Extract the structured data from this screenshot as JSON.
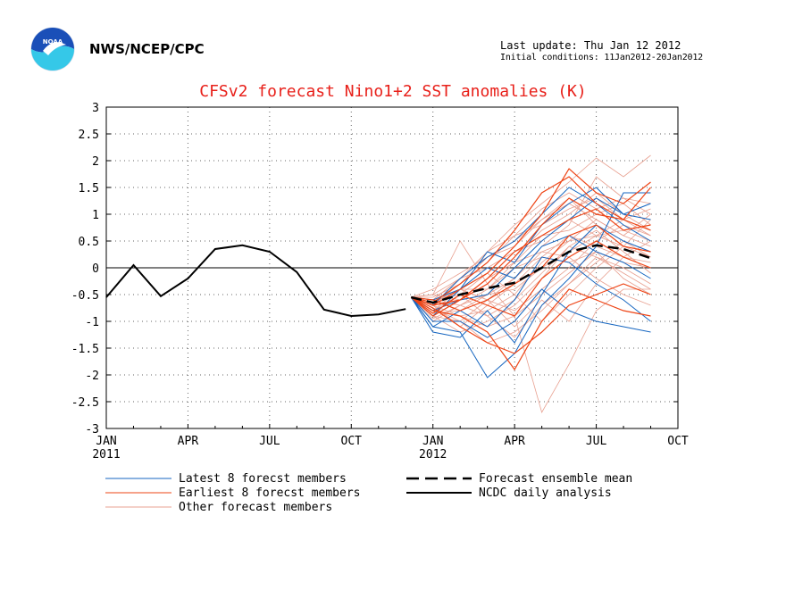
{
  "header": {
    "org": "NWS/NCEP/CPC",
    "last_update": "Last update: Thu Jan 12 2012",
    "initial_conditions": "Initial conditions: 11Jan2012-20Jan2012",
    "logo_text": "NOAA"
  },
  "colors": {
    "title": "#e8201a",
    "latest": "#1565c0",
    "earliest": "#ee4415",
    "other": "#e8a090",
    "mean": "#000000",
    "analysis": "#000000",
    "logo_blue": "#1a4fb8",
    "logo_cyan": "#35c8e8"
  },
  "chart_data": {
    "type": "line",
    "title": "CFSv2 forecast Nino1+2 SST anomalies (K)",
    "ylim": [
      -3,
      3
    ],
    "y_ticks": [
      "3",
      "2.5",
      "2",
      "1.5",
      "1",
      "0.5",
      "0",
      "-0.5",
      "-1",
      "-1.5",
      "-2",
      "-2.5",
      "-3"
    ],
    "x_ticks": [
      "JAN",
      "APR",
      "JUL",
      "OCT",
      "JAN",
      "APR",
      "JUL",
      "OCT"
    ],
    "x_year_labels": [
      "2011",
      "2012"
    ],
    "x_range_months": [
      0,
      21
    ],
    "grid": true,
    "zero_line": true,
    "legend": {
      "latest": "Latest 8 forecst members",
      "earliest": "Earliest 8 forecst members",
      "other": "Other forecast members",
      "mean": "Forecast ensemble mean",
      "analysis": "NCDC daily analysis"
    },
    "ncdc_analysis": {
      "x_month": [
        0,
        1,
        2,
        3,
        4,
        5,
        6,
        7,
        8,
        9,
        10,
        11
      ],
      "y": [
        -0.55,
        0.05,
        -0.53,
        -0.2,
        0.35,
        0.42,
        0.3,
        -0.08,
        -0.78,
        -0.9,
        -0.87,
        -0.77
      ]
    },
    "ensemble_mean": {
      "x_month": [
        11.2,
        12,
        13,
        14,
        15,
        16,
        17,
        18,
        19,
        20
      ],
      "y": [
        -0.55,
        -0.65,
        -0.5,
        -0.38,
        -0.28,
        0.0,
        0.3,
        0.42,
        0.35,
        0.18
      ]
    },
    "members": {
      "x_month": [
        11.2,
        12,
        13,
        14,
        15,
        16,
        17,
        18,
        19,
        20
      ],
      "n_latest": 8,
      "n_earliest": 8,
      "n_other": 24,
      "latest": [
        [
          -0.55,
          -1.1,
          -1.2,
          -2.05,
          -1.6,
          -0.7,
          -0.2,
          0.4,
          1.4,
          1.4
        ],
        [
          -0.55,
          -0.9,
          -0.4,
          0.3,
          0.1,
          0.8,
          1.2,
          1.5,
          1.0,
          1.2
        ],
        [
          -0.55,
          -1.2,
          -1.3,
          -0.8,
          -1.4,
          -0.5,
          0.3,
          0.8,
          0.5,
          0.3
        ],
        [
          -0.55,
          -0.7,
          -0.2,
          0.2,
          0.5,
          1.0,
          1.5,
          1.2,
          0.8,
          0.5
        ],
        [
          -0.55,
          -1.0,
          -1.0,
          -1.3,
          -1.0,
          -0.4,
          -0.8,
          -1.0,
          -1.1,
          -1.2
        ],
        [
          -0.55,
          -0.8,
          -0.6,
          -0.5,
          0.0,
          0.5,
          0.9,
          1.3,
          1.0,
          0.9
        ],
        [
          -0.55,
          -1.1,
          -0.8,
          -1.1,
          -0.6,
          0.2,
          0.1,
          -0.3,
          -0.6,
          -1.0
        ],
        [
          -0.55,
          -0.6,
          -0.4,
          0.0,
          -0.2,
          0.4,
          0.6,
          0.3,
          0.1,
          -0.2
        ]
      ],
      "earliest": [
        [
          -0.55,
          -0.7,
          -0.4,
          -0.1,
          0.4,
          1.0,
          1.85,
          1.4,
          1.2,
          1.6
        ],
        [
          -0.55,
          -0.8,
          -0.9,
          -1.2,
          -1.9,
          -1.0,
          -0.4,
          -0.6,
          -0.8,
          -0.9
        ],
        [
          -0.55,
          -0.9,
          -0.6,
          -0.3,
          0.2,
          0.8,
          1.3,
          1.0,
          0.9,
          1.5
        ],
        [
          -0.55,
          -0.6,
          -0.8,
          -0.6,
          -0.3,
          0.0,
          0.6,
          0.8,
          0.4,
          0.3
        ],
        [
          -0.55,
          -0.75,
          -1.1,
          -1.4,
          -1.6,
          -1.2,
          -0.7,
          -0.5,
          -0.3,
          -0.5
        ],
        [
          -0.55,
          -0.65,
          -0.3,
          0.1,
          0.7,
          1.4,
          1.7,
          1.2,
          0.9,
          0.7
        ],
        [
          -0.55,
          -0.85,
          -0.5,
          -0.7,
          -0.9,
          -0.2,
          0.2,
          0.5,
          0.2,
          0.0
        ],
        [
          -0.55,
          -0.7,
          -0.6,
          -0.2,
          0.3,
          0.6,
          0.9,
          1.1,
          0.7,
          0.8
        ]
      ],
      "other": [
        [
          -0.55,
          -0.5,
          0.5,
          -0.3,
          -0.9,
          -2.7,
          -1.8,
          -0.8,
          -0.4,
          -0.4
        ],
        [
          -0.55,
          -0.6,
          -0.2,
          0.3,
          0.8,
          1.2,
          1.6,
          2.05,
          1.7,
          2.1
        ],
        [
          -0.55,
          -0.9,
          -1.0,
          -0.6,
          -0.2,
          0.4,
          0.8,
          1.7,
          1.3,
          1.0
        ],
        [
          -0.55,
          -0.7,
          -0.4,
          -0.6,
          -1.1,
          -0.6,
          -1.0,
          -0.3,
          0.2,
          0.5
        ],
        [
          -0.55,
          -0.4,
          -0.1,
          0.2,
          0.5,
          0.9,
          1.2,
          0.9,
          0.6,
          0.4
        ],
        [
          -0.55,
          -0.8,
          -0.9,
          -0.8,
          -0.5,
          0.1,
          0.5,
          0.6,
          0.9,
          1.1
        ],
        [
          -0.55,
          -1.0,
          -0.7,
          -0.4,
          0.0,
          0.2,
          0.1,
          0.3,
          -0.2,
          -0.5
        ],
        [
          -0.55,
          -0.6,
          -0.5,
          -0.9,
          -1.3,
          -0.7,
          -0.3,
          0.1,
          0.5,
          0.2
        ],
        [
          -0.55,
          -0.7,
          -0.3,
          0.1,
          0.6,
          1.1,
          1.4,
          1.1,
          1.3,
          1.2
        ],
        [
          -0.55,
          -0.9,
          -1.2,
          -1.0,
          -0.7,
          -0.2,
          0.4,
          0.7,
          0.3,
          -0.1
        ],
        [
          -0.55,
          -0.5,
          -0.6,
          -0.3,
          0.2,
          0.7,
          1.0,
          1.4,
          1.0,
          0.7
        ],
        [
          -0.55,
          -0.8,
          -0.5,
          -0.1,
          -0.5,
          -1.0,
          -0.5,
          0.0,
          0.4,
          0.9
        ],
        [
          -0.55,
          -0.75,
          -1.0,
          -1.4,
          -1.2,
          -0.8,
          -0.3,
          0.2,
          0.0,
          -0.3
        ],
        [
          -0.55,
          -0.6,
          -0.2,
          0.0,
          0.3,
          0.5,
          0.9,
          0.6,
          0.7,
          0.5
        ],
        [
          -0.55,
          -0.85,
          -0.8,
          -0.5,
          -0.2,
          0.3,
          0.2,
          -0.2,
          -0.5,
          -0.7
        ],
        [
          -0.55,
          -0.65,
          -0.4,
          -0.6,
          -0.8,
          -0.4,
          0.0,
          0.5,
          0.8,
          0.6
        ],
        [
          -0.55,
          -0.7,
          -0.9,
          -1.1,
          -0.9,
          -0.5,
          -0.1,
          0.3,
          0.1,
          0.0
        ],
        [
          -0.55,
          -0.55,
          -0.3,
          0.2,
          0.4,
          0.9,
          1.3,
          0.8,
          0.5,
          0.3
        ],
        [
          -0.55,
          -0.9,
          -0.6,
          -0.2,
          0.1,
          0.6,
          0.7,
          1.0,
          1.2,
          0.8
        ],
        [
          -0.55,
          -0.6,
          -0.7,
          -0.9,
          -0.6,
          -0.1,
          0.4,
          0.2,
          -0.1,
          -0.4
        ],
        [
          -0.55,
          -0.8,
          -0.4,
          -0.4,
          0.1,
          0.3,
          0.5,
          0.9,
          0.6,
          1.0
        ],
        [
          -0.55,
          -0.7,
          -1.1,
          -0.7,
          -0.3,
          0.2,
          0.6,
          0.4,
          0.2,
          0.1
        ],
        [
          -0.55,
          -0.5,
          -0.2,
          0.3,
          0.6,
          0.8,
          1.1,
          1.3,
          0.9,
          0.6
        ],
        [
          -0.55,
          -0.95,
          -0.7,
          -0.5,
          -0.4,
          0.0,
          0.3,
          0.6,
          0.4,
          0.2
        ]
      ]
    }
  }
}
